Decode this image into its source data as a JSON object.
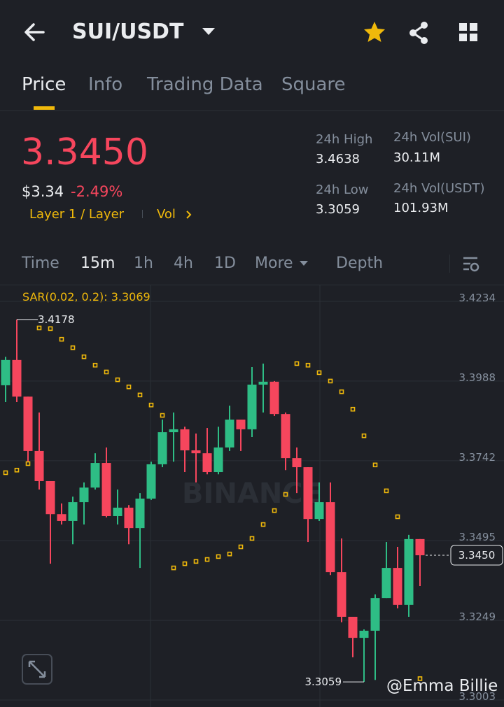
{
  "header": {
    "pair": "SUI/USDT"
  },
  "tabs": [
    "Price",
    "Info",
    "Trading Data",
    "Square"
  ],
  "price": {
    "last": "3.3450",
    "fiat": "$3.34",
    "change": "-2.49%",
    "tags": [
      "Layer 1 / Layer",
      "Vol"
    ]
  },
  "stats": [
    {
      "label": "24h High",
      "value": "3.4638"
    },
    {
      "label": "24h Vol(SUI)",
      "value": "30.11M"
    },
    {
      "label": "24h Low",
      "value": "3.3059"
    },
    {
      "label": "24h Vol(USDT)",
      "value": "101.93M"
    }
  ],
  "intervals": [
    "Time",
    "15m",
    "1h",
    "4h",
    "1D",
    "More",
    "Depth"
  ],
  "chart_data": {
    "type": "candlestick",
    "indicator_label": "SAR(0.02, 0.2): 3.3069",
    "watermark": "BINANCE",
    "credit": "@Emma Billie",
    "ylim": [
      3.3003,
      3.4234
    ],
    "yticks": [
      3.4234,
      3.3988,
      3.3742,
      3.3495,
      3.3249,
      3.3003
    ],
    "grid": true,
    "up_color": "#2ebd85",
    "down_color": "#f6465d",
    "sar_color": "#f0b90b",
    "open": [
      3.3975,
      3.4053,
      3.394,
      3.3772,
      3.3679,
      3.3577,
      3.3556,
      3.3614,
      3.3659,
      3.3735,
      3.3571,
      3.3597,
      3.3534,
      3.3625,
      3.3731,
      3.383,
      3.3839,
      3.3774,
      3.3765,
      3.3707,
      3.3783,
      3.3869,
      3.3839,
      3.3977,
      3.3986,
      3.3886,
      3.375,
      3.3722,
      3.3562,
      3.3614,
      3.3398,
      3.326,
      3.3195,
      3.3217,
      3.3318,
      3.3411,
      3.3297,
      3.35
    ],
    "high": [
      3.4063,
      3.4178,
      3.394,
      3.3891,
      3.3679,
      3.361,
      3.3631,
      3.3675,
      3.3765,
      3.3783,
      3.3653,
      3.3605,
      3.3642,
      3.3739,
      3.3869,
      3.3891,
      3.3847,
      3.3826,
      3.3843,
      3.3847,
      3.3912,
      3.3869,
      3.4031,
      3.4042,
      3.3988,
      3.3891,
      3.3783,
      3.3722,
      3.3675,
      3.3675,
      3.3502,
      3.326,
      3.3221,
      3.3329,
      3.3491,
      3.3476,
      3.3513,
      3.35
    ],
    "low": [
      3.3923,
      3.3923,
      3.3739,
      3.3653,
      3.3424,
      3.3545,
      3.3484,
      3.3545,
      3.3653,
      3.3567,
      3.3545,
      3.3484,
      3.3411,
      3.3621,
      3.3722,
      3.3739,
      3.3707,
      3.3675,
      3.37,
      3.37,
      3.3772,
      3.3772,
      3.3815,
      3.3891,
      3.388,
      3.3713,
      3.3642,
      3.3491,
      3.3556,
      3.3389,
      3.3243,
      3.3135,
      3.3059,
      3.3065,
      3.3318,
      3.3286,
      3.326,
      3.3355
    ],
    "close": [
      3.4053,
      3.394,
      3.3772,
      3.3679,
      3.3577,
      3.3556,
      3.3614,
      3.3659,
      3.3735,
      3.3571,
      3.3597,
      3.3534,
      3.3625,
      3.3731,
      3.383,
      3.3839,
      3.3774,
      3.3765,
      3.3707,
      3.3783,
      3.3869,
      3.3839,
      3.3977,
      3.3986,
      3.3886,
      3.375,
      3.3722,
      3.3562,
      3.3614,
      3.3398,
      3.326,
      3.3195,
      3.3217,
      3.3318,
      3.3411,
      3.3297,
      3.35,
      3.345
    ],
    "sar": [
      3.3705,
      3.3713,
      3.3733,
      3.4152,
      3.415,
      3.4117,
      3.4091,
      3.4063,
      3.4037,
      3.4016,
      3.3992,
      3.397,
      3.3945,
      3.3914,
      3.3882,
      3.3411,
      3.3424,
      3.3431,
      3.3437,
      3.3446,
      3.3454,
      3.3476,
      3.3502,
      3.3545,
      3.3588,
      3.3638,
      3.4042,
      3.4037,
      3.4014,
      3.3988,
      3.3955,
      3.3901,
      3.3819,
      3.3729,
      3.3649,
      3.3569,
      null,
      3.3069
    ]
  }
}
